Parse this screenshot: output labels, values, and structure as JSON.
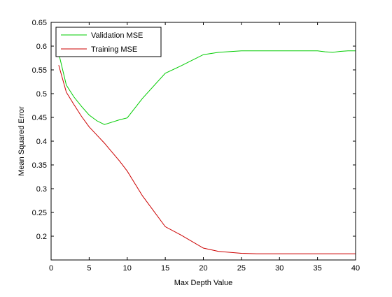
{
  "chart_data": {
    "type": "line",
    "title": "",
    "xlabel": "Max Depth Value",
    "ylabel": "Mean Squared Error",
    "xlim": [
      0,
      40
    ],
    "ylim": [
      0.15,
      0.65
    ],
    "xticks": [
      0,
      5,
      10,
      15,
      20,
      25,
      30,
      35,
      40
    ],
    "yticks": [
      0.2,
      0.25,
      0.3,
      0.35,
      0.4,
      0.45,
      0.5,
      0.55,
      0.6,
      0.65
    ],
    "grid": false,
    "legend_position": "top-left",
    "series": [
      {
        "name": "Validation MSE",
        "color": "#00cc00",
        "x": [
          1,
          2,
          3,
          4,
          5,
          6,
          7,
          8,
          9,
          10,
          12,
          15,
          17,
          20,
          22,
          25,
          30,
          35,
          36,
          37,
          38,
          39,
          40
        ],
        "y": [
          0.585,
          0.518,
          0.493,
          0.473,
          0.455,
          0.443,
          0.435,
          0.44,
          0.445,
          0.449,
          0.49,
          0.543,
          0.558,
          0.582,
          0.587,
          0.59,
          0.59,
          0.59,
          0.588,
          0.587,
          0.589,
          0.59,
          0.59
        ]
      },
      {
        "name": "Training MSE",
        "color": "#cc0000",
        "x": [
          1,
          2,
          3,
          4,
          5,
          6,
          7,
          8,
          9,
          10,
          12,
          15,
          17,
          20,
          22,
          25,
          27,
          30,
          35,
          40
        ],
        "y": [
          0.56,
          0.503,
          0.477,
          0.452,
          0.43,
          0.413,
          0.396,
          0.377,
          0.358,
          0.337,
          0.285,
          0.22,
          0.203,
          0.175,
          0.168,
          0.164,
          0.163,
          0.163,
          0.163,
          0.163
        ]
      }
    ]
  }
}
